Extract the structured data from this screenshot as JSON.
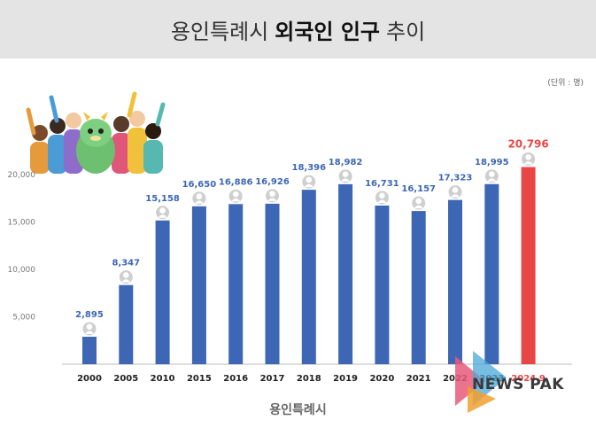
{
  "header": {
    "title_prefix": "용인특례시",
    "title_bold": "외국인 인구",
    "title_suffix": "추이"
  },
  "unit_note": "(단위 : 명)",
  "footer_logo": "용인특례시",
  "watermark": "NEWS PAK",
  "colors": {
    "bar": "#3d66b4",
    "highlight_bar": "#e84545",
    "label": "#3d66b4",
    "highlight_label": "#e84545",
    "header_bg": "#e4e4e4"
  },
  "chart_data": {
    "type": "bar",
    "categories": [
      "2000",
      "2005",
      "2010",
      "2015",
      "2016",
      "2017",
      "2018",
      "2019",
      "2020",
      "2021",
      "2022",
      "2023",
      "2024.9"
    ],
    "values": [
      2895,
      8347,
      15158,
      16650,
      16886,
      16926,
      18396,
      18982,
      16731,
      16157,
      17323,
      18995,
      20796
    ],
    "data_labels": [
      "2,895",
      "8,347",
      "15,158",
      "16,650",
      "16,886",
      "16,926",
      "18,396",
      "18,982",
      "16,731",
      "16,157",
      "17,323",
      "18,995",
      "20,796"
    ],
    "highlight_index": 12,
    "y_ticks": [
      5000,
      10000,
      15000,
      20000
    ],
    "y_tick_labels": [
      "5,000",
      "10,000",
      "15,000",
      "20,000"
    ],
    "ylim": [
      0,
      20000
    ],
    "grid": false,
    "legend": "none"
  }
}
